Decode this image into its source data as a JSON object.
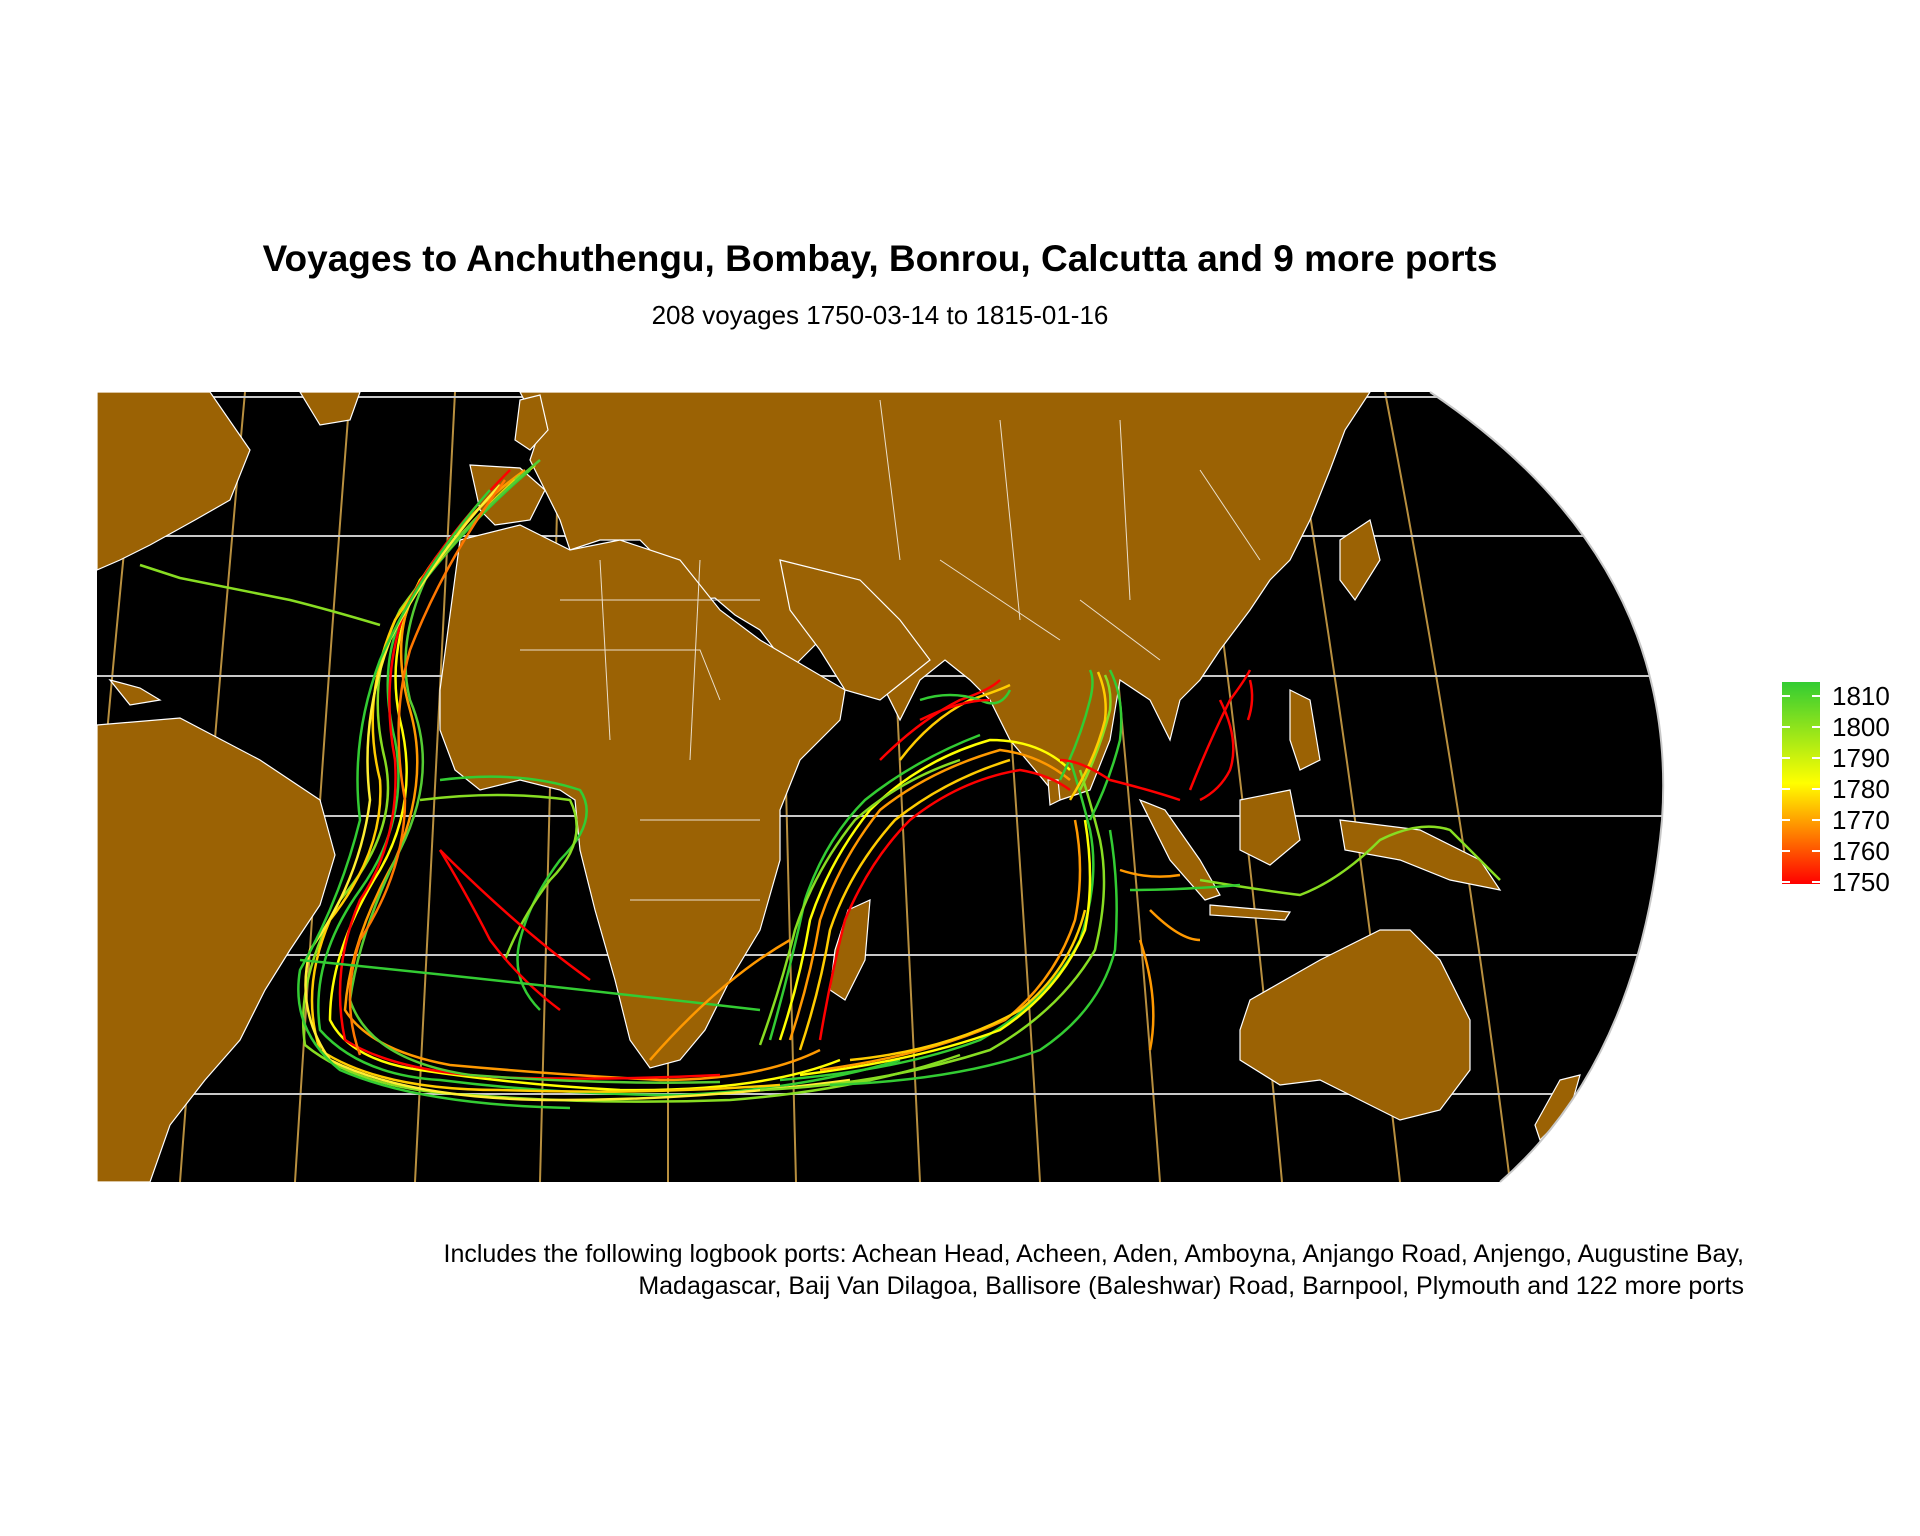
{
  "title": "Voyages to Anchuthengu, Bombay, Bonrou, Calcutta and 9 more ports",
  "subtitle": "208 voyages 1750-03-14 to 1815-01-16",
  "caption_line1": "Includes the following logbook ports: Achean Head, Acheen, Aden, Amboyna, Anjango Road, Anjengo, Augustine Bay,",
  "caption_line2": "Madagascar, Baij Van Dilagoa, Ballisore (Baleshwar) Road, Barnpool, Plymouth and 122 more ports",
  "colors": {
    "ocean": "#000000",
    "land": "#9b6204",
    "borders": "#ffffff",
    "graticule_lat": "#c8c8c8",
    "graticule_lon": "#d9a94a",
    "scale_low": "#ff0000",
    "scale_mid": "#ffff00",
    "scale_high": "#33cc33"
  },
  "legend": {
    "title": "",
    "ticks": [
      "1810",
      "1800",
      "1790",
      "1780",
      "1770",
      "1760",
      "1750"
    ]
  }
}
